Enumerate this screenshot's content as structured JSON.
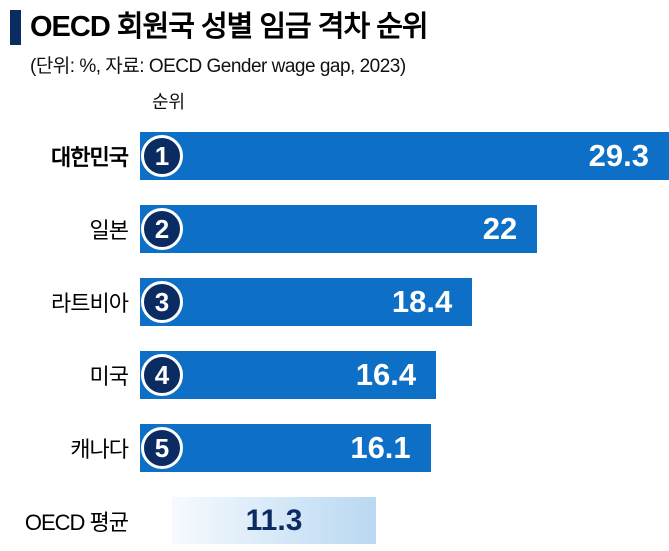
{
  "header": {
    "title": "OECD 회원국 성별 임금 격차 순위",
    "subtitle": "(단위: %, 자료: OECD Gender wage gap, 2023)",
    "rank_column_label": "순위"
  },
  "chart_data": {
    "type": "bar",
    "orientation": "horizontal",
    "title": "OECD 회원국 성별 임금 격차 순위",
    "unit": "%",
    "source": "OECD Gender wage gap, 2023",
    "categories": [
      "대한민국",
      "일본",
      "라트비아",
      "미국",
      "캐나다"
    ],
    "ranks": [
      "1",
      "2",
      "3",
      "4",
      "5"
    ],
    "values": [
      29.3,
      22,
      18.4,
      16.4,
      16.1
    ],
    "value_labels": [
      "29.3",
      "22",
      "18.4",
      "16.4",
      "16.1"
    ],
    "average": {
      "label": "OECD 평균",
      "value": 11.3,
      "value_label": "11.3"
    },
    "xlim": [
      0,
      29.3
    ],
    "legend": "none",
    "grid": false,
    "colors": {
      "bar": "#0d6fc5",
      "rank_circle": "#0a2c62",
      "title_accent": "#0a2c62",
      "value_text": "#ffffff",
      "average_text": "#0a2c62",
      "average_bar_gradient_start": "#f6fafe",
      "average_bar_gradient_end": "#b9d8f1"
    }
  }
}
